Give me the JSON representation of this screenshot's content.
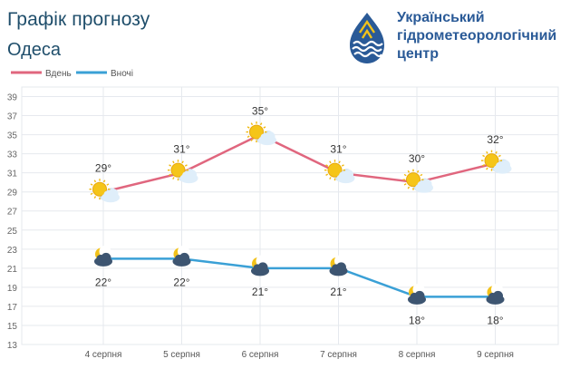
{
  "header": {
    "title": "Графік прогнозу",
    "city": "Одеса"
  },
  "org": {
    "line1": "Український",
    "line2": "гідрометеорологічний",
    "line3": "центр"
  },
  "colors": {
    "day": "#e0667e",
    "night": "#3aa0d6",
    "title": "#1f4e6b",
    "org": "#2a5a97"
  },
  "chart_data": {
    "type": "line",
    "categories": [
      "4 серпня",
      "5 серпня",
      "6 серпня",
      "7 серпня",
      "8 серпня",
      "9 серпня"
    ],
    "series": [
      {
        "name": "Вдень",
        "values": [
          29,
          31,
          35,
          31,
          30,
          32
        ],
        "labels": [
          "29°",
          "31°",
          "35°",
          "31°",
          "30°",
          "32°"
        ],
        "icons": [
          "sun-cloud-icon",
          "sun-cloud-icon",
          "sun-cloud-icon",
          "sun-cloud-icon",
          "sun-cloud-icon",
          "sun-cloud-icon"
        ]
      },
      {
        "name": "Вночі",
        "values": [
          22,
          22,
          21,
          21,
          18,
          18
        ],
        "labels": [
          "22°",
          "22°",
          "21°",
          "21°",
          "18°",
          "18°"
        ],
        "icons": [
          "moon-cloud-icon",
          "moon-cloud-icon",
          "moon-cloud-icon",
          "moon-cloud-icon",
          "moon-cloud-icon",
          "moon-cloud-icon"
        ]
      }
    ],
    "yticks": [
      "13",
      "15",
      "17",
      "19",
      "21",
      "23",
      "25",
      "27",
      "29",
      "31",
      "33",
      "35",
      "37",
      "39"
    ],
    "ylim": [
      13,
      40
    ],
    "grid": true,
    "legend": "top-left"
  }
}
